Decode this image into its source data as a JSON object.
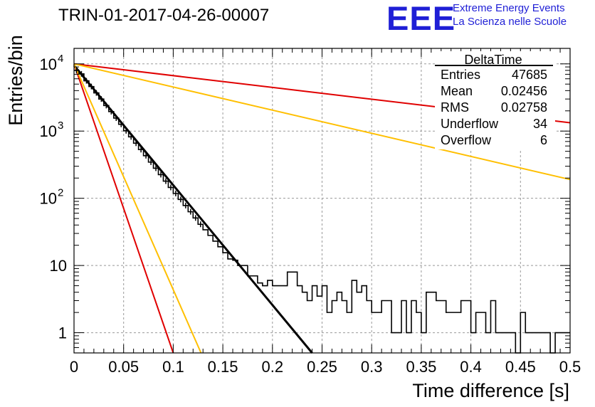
{
  "header": {
    "title": "TRIN-01-2017-04-26-00007",
    "logo_mark": "EEE",
    "logo_line1": "Extreme Energy Events",
    "logo_line2": "La Scienza nelle Scuole",
    "logo_color": "#1f1fd6"
  },
  "stats_box": {
    "name": "DeltaTime",
    "rows": [
      {
        "label": "Entries",
        "value": "47685"
      },
      {
        "label": "Mean",
        "value": "0.02456"
      },
      {
        "label": "RMS",
        "value": "0.02758"
      },
      {
        "label": "Underflow",
        "value": "34"
      },
      {
        "label": "Overflow",
        "value": "6"
      }
    ]
  },
  "chart_data": {
    "type": "line",
    "title": "TRIN-01-2017-04-26-00007",
    "xlabel": "Time difference [s]",
    "ylabel": "Entries/bin",
    "xlim": [
      0,
      0.5
    ],
    "ylim": [
      0.5,
      17000
    ],
    "yscale": "log",
    "grid": true,
    "x_ticks": [
      "0",
      "0.05",
      "0.1",
      "0.15",
      "0.2",
      "0.25",
      "0.3",
      "0.35",
      "0.4",
      "0.45",
      "0.5"
    ],
    "x_tick_values": [
      0,
      0.05,
      0.1,
      0.15,
      0.2,
      0.25,
      0.3,
      0.35,
      0.4,
      0.45,
      0.5
    ],
    "y_ticks": [
      {
        "value": 1,
        "base": "1",
        "exp": ""
      },
      {
        "value": 10,
        "base": "10",
        "exp": ""
      },
      {
        "value": 100,
        "base": "10",
        "exp": "2"
      },
      {
        "value": 1000,
        "base": "10",
        "exp": "3"
      },
      {
        "value": 10000,
        "base": "10",
        "exp": "4"
      }
    ],
    "series": [
      {
        "kind": "histogram",
        "color": "#000000",
        "bin_width": 0.005,
        "counts": [
          8000,
          7100,
          5600,
          4600,
          3700,
          3000,
          2400,
          1950,
          1560,
          1260,
          1010,
          820,
          660,
          530,
          430,
          345,
          280,
          225,
          180,
          145,
          118,
          96,
          78,
          63,
          51,
          41,
          34,
          28,
          23,
          19,
          15.5,
          12.5,
          12,
          10,
          10,
          7,
          7,
          5.5,
          5,
          6,
          5,
          5,
          5,
          8,
          8,
          5,
          4,
          3,
          5,
          3.5,
          5,
          2,
          3,
          4,
          3,
          2,
          6,
          4,
          5,
          3,
          2,
          2,
          3,
          3,
          1,
          1,
          3,
          1,
          3,
          2,
          1,
          4,
          4,
          3,
          3,
          2,
          2,
          2,
          3,
          3,
          1,
          2,
          2,
          1,
          3,
          1,
          1,
          1,
          1,
          0.5,
          2,
          1,
          1,
          1,
          1,
          1,
          0.5,
          1,
          1,
          1
        ]
      },
      {
        "kind": "fit",
        "color": "#000000",
        "points": [
          [
            0,
            9500
          ],
          [
            0.24,
            0.5
          ]
        ]
      },
      {
        "kind": "reference",
        "color": "#e00000",
        "points": [
          [
            0,
            10000
          ],
          [
            0.5,
            1330
          ]
        ]
      },
      {
        "kind": "reference",
        "color": "#ffbf00",
        "points": [
          [
            0,
            10000
          ],
          [
            0.5,
            190
          ]
        ]
      },
      {
        "kind": "reference",
        "color": "#e00000",
        "points": [
          [
            0,
            10000
          ],
          [
            0.1,
            0.5
          ]
        ]
      },
      {
        "kind": "reference",
        "color": "#ffbf00",
        "points": [
          [
            0,
            10000
          ],
          [
            0.128,
            0.5
          ]
        ]
      }
    ]
  }
}
